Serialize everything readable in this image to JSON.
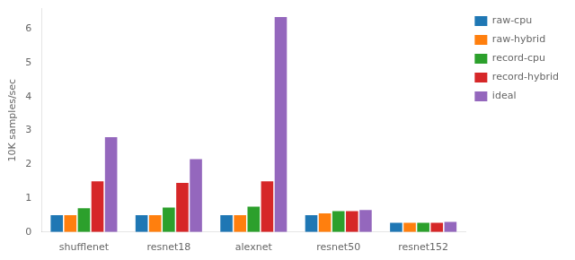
{
  "chart_data": {
    "type": "bar",
    "categories": [
      "shufflenet",
      "resnet18",
      "alexnet",
      "resnet50",
      "resnet152"
    ],
    "series": [
      {
        "name": "raw-cpu",
        "color": "#1f77b4",
        "values": [
          0.5,
          0.5,
          0.5,
          0.5,
          0.27
        ]
      },
      {
        "name": "raw-hybrid",
        "color": "#ff7f0e",
        "values": [
          0.5,
          0.5,
          0.5,
          0.55,
          0.27
        ]
      },
      {
        "name": "record-cpu",
        "color": "#2ca02c",
        "values": [
          0.7,
          0.72,
          0.75,
          0.62,
          0.27
        ]
      },
      {
        "name": "record-hybrid",
        "color": "#d62728",
        "values": [
          1.5,
          1.45,
          1.5,
          0.62,
          0.27
        ]
      },
      {
        "name": "ideal",
        "color": "#9467bd",
        "values": [
          2.8,
          2.15,
          6.35,
          0.65,
          0.3
        ]
      }
    ],
    "ylabel": "10K samples/sec",
    "ylim": [
      0,
      6.6
    ],
    "yticks": [
      0,
      1,
      2,
      3,
      4,
      5,
      6
    ],
    "grid": false,
    "legend": "upper right"
  }
}
